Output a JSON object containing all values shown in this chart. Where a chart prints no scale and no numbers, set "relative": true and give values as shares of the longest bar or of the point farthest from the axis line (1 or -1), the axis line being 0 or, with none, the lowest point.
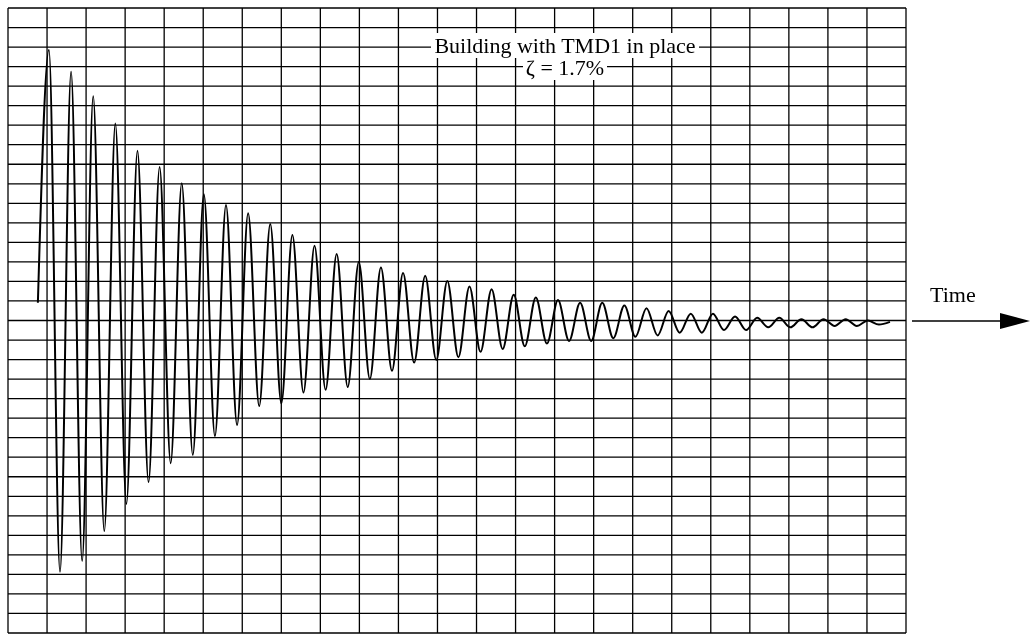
{
  "chart_data": {
    "type": "line",
    "relative": true,
    "xlabel": "Time",
    "annotations": [
      "Building with TMD1 in place",
      "ζ = 1.7%"
    ],
    "grid": true,
    "marker": "none",
    "line_style": "solid",
    "categories": [
      null,
      null,
      null,
      null,
      null,
      null,
      null,
      null,
      null,
      null,
      null,
      null,
      null,
      null,
      null,
      null,
      null,
      null,
      null,
      null,
      null,
      null,
      null,
      null,
      null,
      null,
      null,
      null,
      null,
      null,
      null,
      null,
      null,
      null,
      null,
      null,
      null,
      null,
      null,
      null,
      null,
      null,
      null,
      null,
      null,
      null,
      null,
      null,
      null,
      null,
      null,
      null,
      null,
      null,
      null,
      null,
      null,
      null,
      null,
      null,
      null,
      null,
      null,
      null,
      null,
      null,
      null,
      null,
      null,
      null,
      null,
      null,
      null,
      null,
      null,
      null,
      null,
      null
    ],
    "series": [
      {
        "color": "#000000",
        "values": [
          0.07,
          1,
          -0.92,
          0.92,
          -0.88,
          0.83,
          -0.77,
          0.73,
          -0.67,
          0.63,
          -0.59,
          0.57,
          -0.52,
          0.51,
          -0.49,
          0.47,
          -0.42,
          0.43,
          -0.38,
          0.4,
          -0.31,
          0.36,
          -0.3,
          0.32,
          -0.26,
          0.28,
          -0.25,
          0.25,
          -0.24,
          0.22,
          -0.21,
          0.2,
          -0.18,
          0.18,
          -0.15,
          0.17,
          -0.14,
          0.15,
          -0.13,
          0.13,
          -0.11,
          0.12,
          -0.1,
          0.1,
          -0.09,
          0.09,
          -0.08,
          0.08,
          -0.07,
          0.07,
          -0.07,
          0.07,
          -0.06,
          0.06,
          -0.055,
          0.05,
          -0.05,
          0.04,
          -0.04,
          0.03,
          -0.04,
          0.03,
          -0.03,
          0.02,
          -0.03,
          0.015,
          -0.02,
          0.015,
          -0.02,
          0.01,
          -0.02,
          0.01,
          -0.015,
          0.01,
          -0.015,
          0.005,
          -0.01,
          0
        ]
      }
    ]
  }
}
